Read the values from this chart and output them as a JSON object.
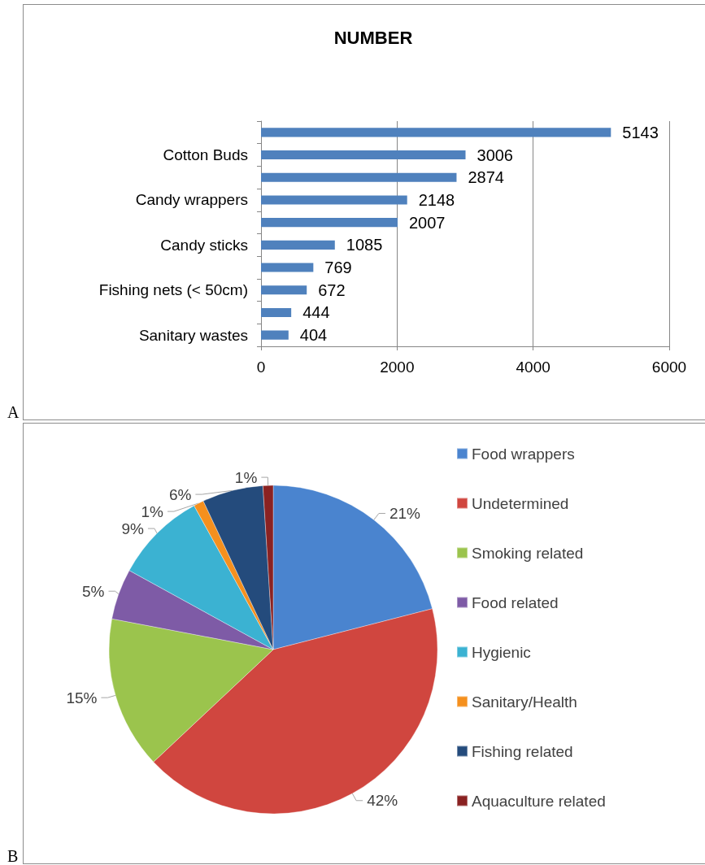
{
  "chart_data": [
    {
      "type": "bar",
      "orientation": "horizontal",
      "title": "NUMBER",
      "categories": [
        null,
        "Cotton Buds",
        null,
        "Candy wrappers",
        null,
        "Candy sticks",
        null,
        "Fishing nets (< 50cm)",
        null,
        "Sanitary wastes"
      ],
      "values": [
        5143,
        3006,
        2874,
        2148,
        2007,
        1085,
        769,
        672,
        444,
        404
      ],
      "color": "#4f81bd",
      "xlim": [
        0,
        6000
      ],
      "xticks": [
        0,
        2000,
        4000,
        6000
      ],
      "grid": "x",
      "data_labels": true,
      "annotations": [
        "A"
      ]
    },
    {
      "type": "pie",
      "categories": [
        "Food wrappers",
        "Undetermined",
        "Smoking related",
        "Food related",
        "Hygienic",
        "Sanitary/Health",
        "Fishing related",
        "Aquaculture related"
      ],
      "values": [
        21,
        42,
        15,
        5,
        9,
        1,
        6,
        1
      ],
      "colors": [
        "#4a84cf",
        "#d0463f",
        "#9bc44d",
        "#7e5ba6",
        "#3bb2d2",
        "#f5901e",
        "#244b7c",
        "#8a2222"
      ],
      "value_labels": [
        "21%",
        "42%",
        "15%",
        "5%",
        "9%",
        "1%",
        "6%",
        "1%"
      ],
      "legend": "right",
      "annotations": [
        "B"
      ]
    }
  ]
}
